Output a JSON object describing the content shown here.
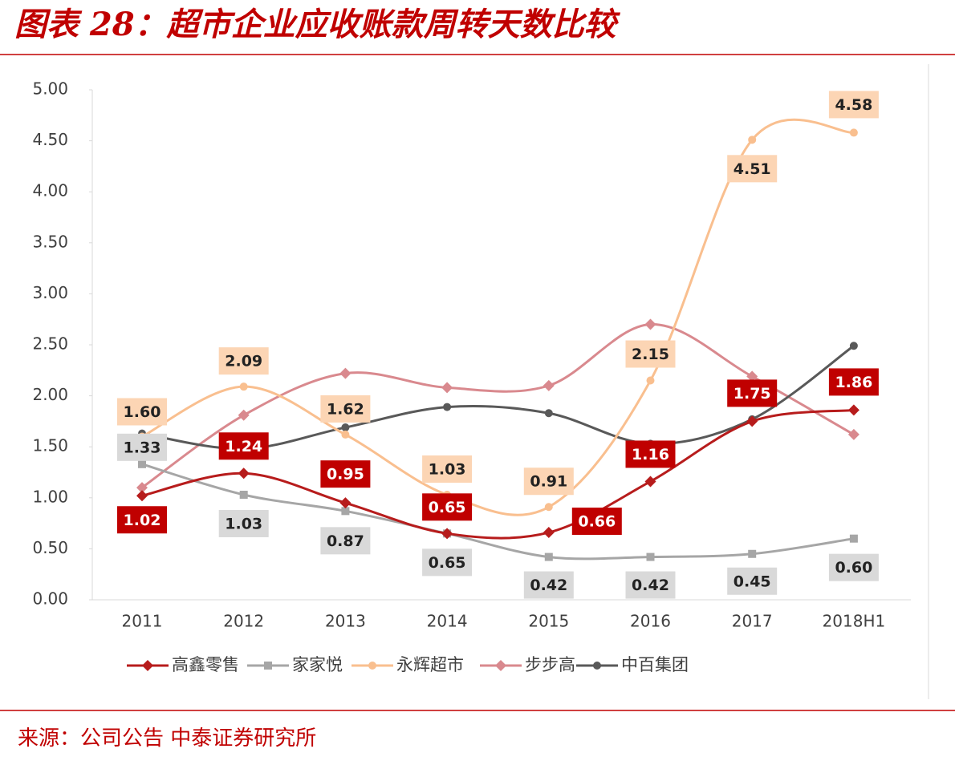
{
  "chart_data": {
    "type": "line",
    "title": "图表 28：超市企业应收账款周转天数比较",
    "source": "来源：公司公告 中泰证券研究所",
    "categories": [
      "2011",
      "2012",
      "2013",
      "2014",
      "2015",
      "2016",
      "2017",
      "2018H1"
    ],
    "series": [
      {
        "name": "高鑫零售",
        "color": "#b71c1c",
        "marker": "diamond",
        "values": [
          1.02,
          1.24,
          0.95,
          0.65,
          0.66,
          1.16,
          1.75,
          1.86
        ],
        "value_labels": [
          "1.02",
          "1.24",
          "0.95",
          "0.65",
          "0.66",
          "1.16",
          "1.75",
          "1.86"
        ]
      },
      {
        "name": "家家悦",
        "color": "#a6a6a6",
        "marker": "square",
        "values": [
          1.33,
          1.03,
          0.87,
          0.65,
          0.42,
          0.42,
          0.45,
          0.6
        ],
        "value_labels": [
          "1.33",
          "1.03",
          "0.87",
          "0.65",
          "0.42",
          "0.42",
          "0.45",
          "0.60"
        ]
      },
      {
        "name": "永辉超市",
        "color": "#f9bf8f",
        "marker": "circle",
        "values": [
          1.6,
          2.09,
          1.62,
          1.03,
          0.91,
          2.15,
          4.51,
          4.58
        ],
        "value_labels": [
          "1.60",
          "2.09",
          "1.62",
          "1.03",
          "0.91",
          "2.15",
          "4.51",
          "4.58"
        ]
      },
      {
        "name": "步步高",
        "color": "#d9898e",
        "marker": "diamond",
        "values": [
          1.1,
          1.81,
          2.22,
          2.08,
          2.1,
          2.7,
          2.19,
          1.62
        ]
      },
      {
        "name": "中百集团",
        "color": "#595959",
        "marker": "circle",
        "values": [
          1.63,
          1.48,
          1.69,
          1.89,
          1.83,
          1.53,
          1.77,
          2.49
        ]
      }
    ],
    "ylim": [
      0,
      5
    ],
    "yticks": [
      {
        "value": 0,
        "label": "0.00"
      },
      {
        "value": 0.5,
        "label": "0.50"
      },
      {
        "value": 1,
        "label": "1.00"
      },
      {
        "value": 1.5,
        "label": "1.50"
      },
      {
        "value": 2,
        "label": "2.00"
      },
      {
        "value": 2.5,
        "label": "2.50"
      },
      {
        "value": 3,
        "label": "3.00"
      },
      {
        "value": 3.5,
        "label": "3.50"
      },
      {
        "value": 4,
        "label": "4.00"
      },
      {
        "value": 4.5,
        "label": "4.50"
      },
      {
        "value": 5,
        "label": "5.00"
      }
    ],
    "grid": false,
    "legend": "bottom"
  }
}
